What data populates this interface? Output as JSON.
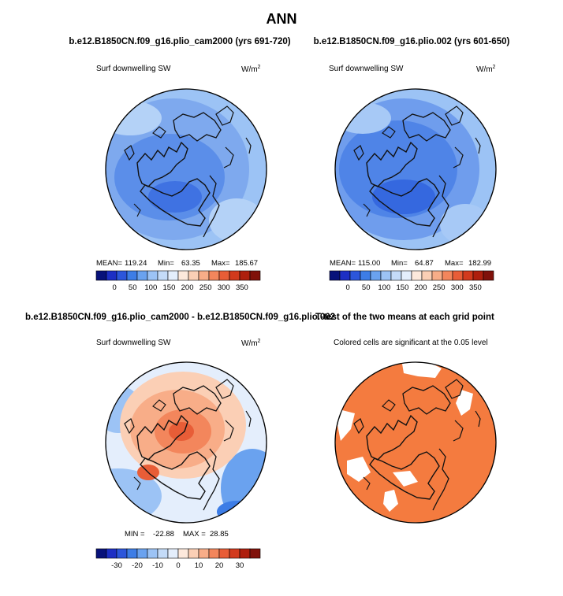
{
  "chart_data": [
    {
      "type": "heatmap",
      "projection": "north-polar-stereographic",
      "title": "b.e12.B1850CN.f09_g16.plio_cam2000 (yrs 691-720)",
      "field_label": "Surf downwelling SW",
      "units": "W/m",
      "units_sup": "2",
      "stats": {
        "mean_label": "MEAN=",
        "mean": "119.24",
        "min_label": "Min=",
        "min": "63.35",
        "max_label": "Max=",
        "max": "185.67"
      },
      "colorbar": {
        "ticks": [
          "0",
          "50",
          "100",
          "150",
          "200",
          "250",
          "300",
          "350"
        ],
        "colors": [
          "#08127a",
          "#1d2fc4",
          "#2c56db",
          "#3d7de6",
          "#6aa2ef",
          "#9cc3f5",
          "#c4dbf8",
          "#e4eefc",
          "#fde9dc",
          "#fbcfb5",
          "#f8ad88",
          "#f3865c",
          "#e85d37",
          "#d23a1d",
          "#ae1f0d",
          "#80110a"
        ]
      }
    },
    {
      "type": "heatmap",
      "projection": "north-polar-stereographic",
      "title": "b.e12.B1850CN.f09_g16.plio.002 (yrs 601-650)",
      "field_label": "Surf downwelling SW",
      "units": "W/m",
      "units_sup": "2",
      "stats": {
        "mean_label": "MEAN=",
        "mean": "115.00",
        "min_label": "Min=",
        "min": "64.87",
        "max_label": "Max=",
        "max": "182.99"
      },
      "colorbar": {
        "ticks": [
          "0",
          "50",
          "100",
          "150",
          "200",
          "250",
          "300",
          "350"
        ],
        "colors": [
          "#08127a",
          "#1d2fc4",
          "#2c56db",
          "#3d7de6",
          "#6aa2ef",
          "#9cc3f5",
          "#c4dbf8",
          "#e4eefc",
          "#fde9dc",
          "#fbcfb5",
          "#f8ad88",
          "#f3865c",
          "#e85d37",
          "#d23a1d",
          "#ae1f0d",
          "#80110a"
        ]
      }
    },
    {
      "type": "heatmap",
      "projection": "north-polar-stereographic",
      "title": "b.e12.B1850CN.f09_g16.plio_cam2000 - b.e12.B1850CN.f09_g16.plio.002",
      "field_label": "Surf downwelling SW",
      "units": "W/m",
      "units_sup": "2",
      "stats": {
        "min_label": "MIN =",
        "min": "-22.88",
        "max_label": "MAX =",
        "max": "28.85"
      },
      "colorbar": {
        "ticks": [
          "-30",
          "-20",
          "-10",
          "0",
          "10",
          "20",
          "30"
        ],
        "colors": [
          "#08127a",
          "#1d2fc4",
          "#2c56db",
          "#3d7de6",
          "#6aa2ef",
          "#9cc3f5",
          "#c4dbf8",
          "#e4eefc",
          "#fde9dc",
          "#fbcfb5",
          "#f8ad88",
          "#f3865c",
          "#e85d37",
          "#d23a1d",
          "#ae1f0d",
          "#80110a"
        ]
      }
    },
    {
      "type": "heatmap",
      "projection": "north-polar-stereographic",
      "title": "T-test of the two means at each grid point",
      "subtitle": "Colored cells are significant at the 0.05 level"
    }
  ],
  "figure": {
    "main_title": "ANN"
  },
  "colors": {
    "panel1_fill": "#7ea9ee",
    "panel2_fill": "#6f9ded",
    "diff_fill": "#f6b795",
    "ttest_fill": "#f47b3f",
    "coast": "#111111"
  }
}
